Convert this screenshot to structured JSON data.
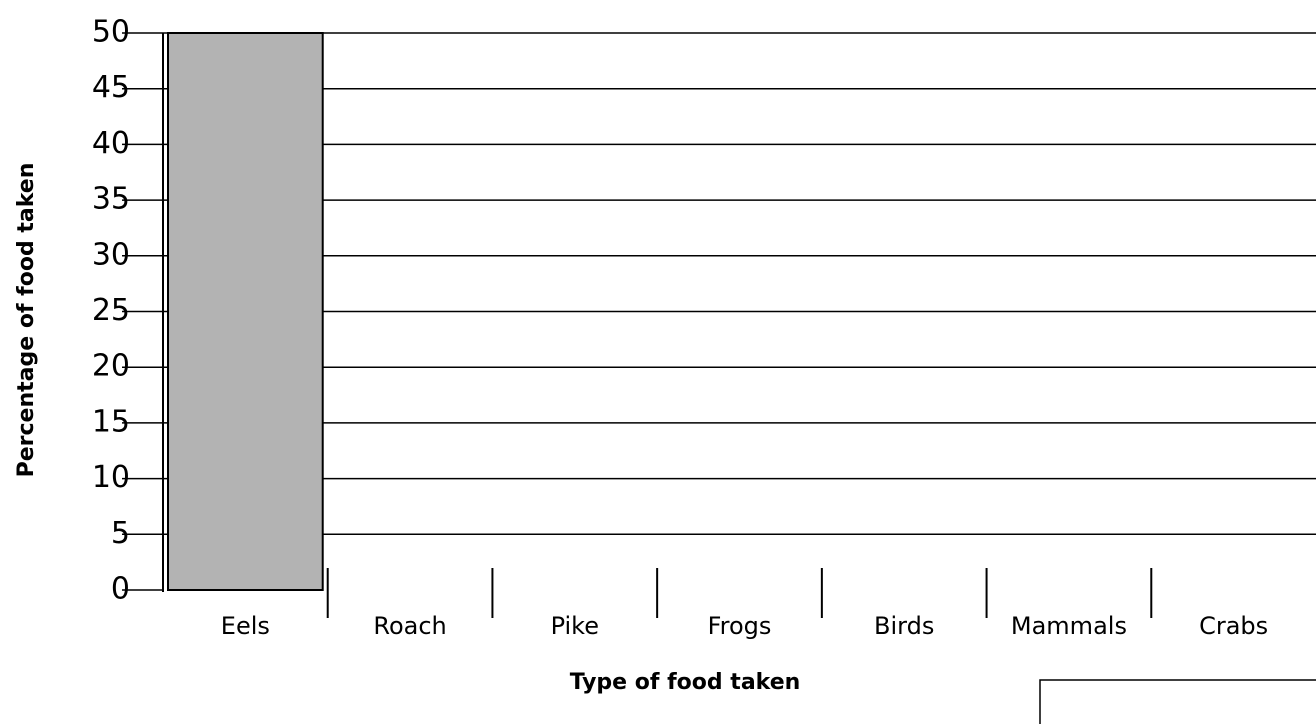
{
  "chart_data": {
    "type": "bar",
    "categories": [
      "Eels",
      "Roach",
      "Pike",
      "Frogs",
      "Birds",
      "Mammals",
      "Crabs"
    ],
    "values": [
      50,
      null,
      null,
      null,
      null,
      null,
      null
    ],
    "color": "#b3b3b3",
    "ylim": [
      0,
      50
    ],
    "yticks": [
      0,
      5,
      10,
      15,
      20,
      25,
      30,
      35,
      40,
      45,
      50
    ],
    "grid": true,
    "x_label": "Type of food taken",
    "y_label": "Percentage of food taken"
  }
}
